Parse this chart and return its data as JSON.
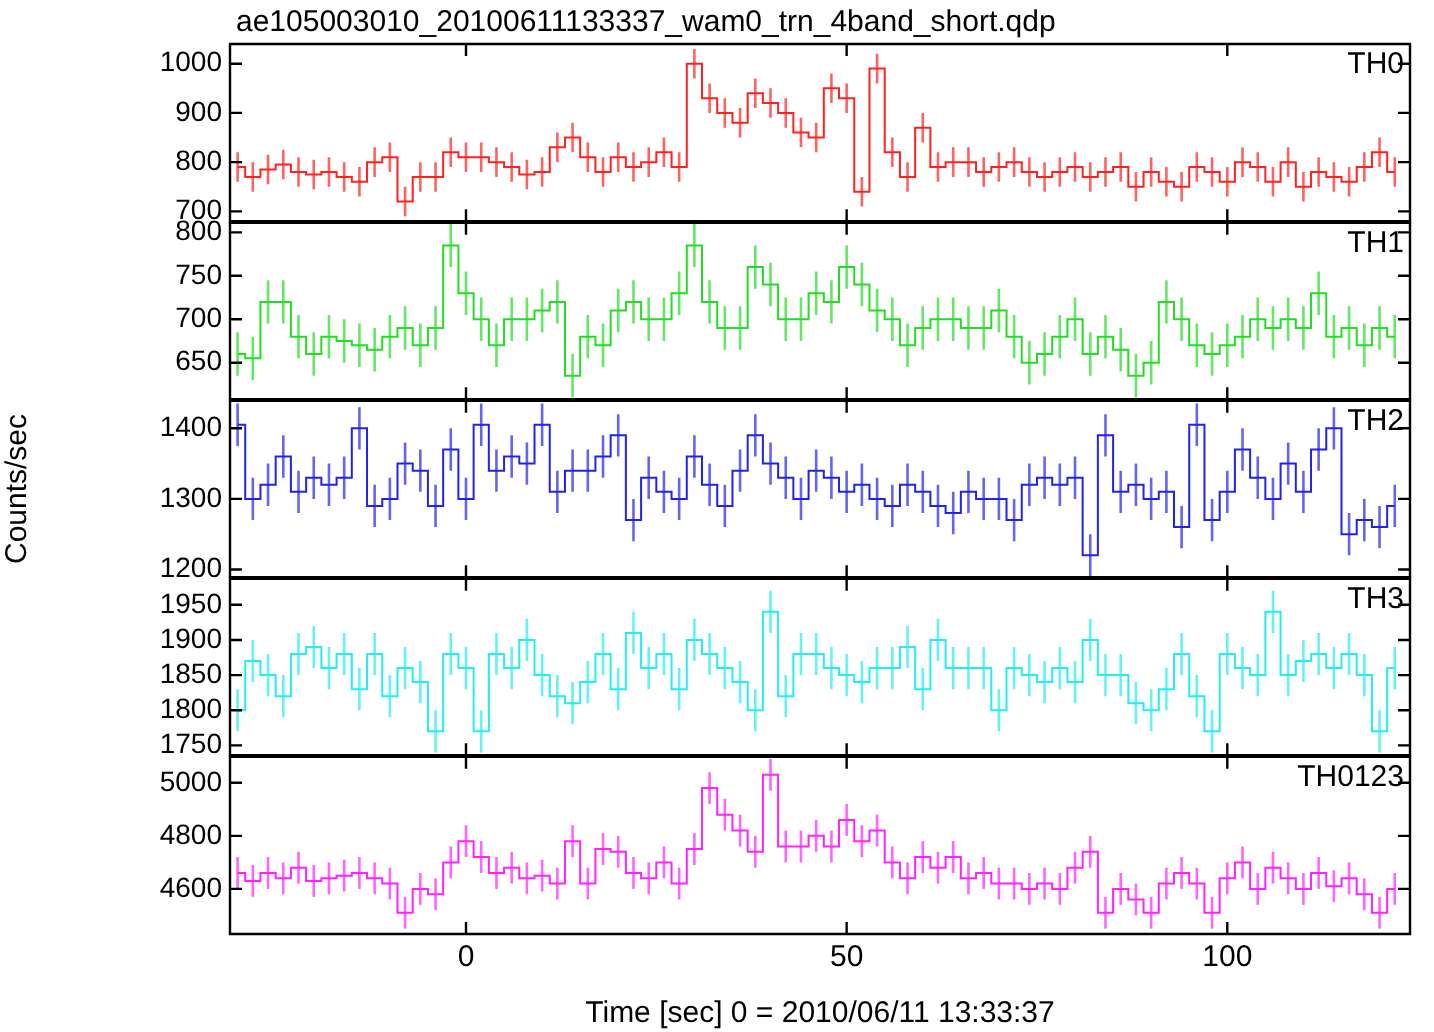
{
  "chart_data": [
    {
      "type": "step",
      "title": "ae105003010_20100611133337_wam0_trn_4band_short.qdp",
      "annotations": [
        "TH0"
      ],
      "color": "#ff2020",
      "xlim": [
        -31,
        124
      ],
      "xticks": [
        0,
        50,
        100
      ],
      "ylim": [
        680,
        1040
      ],
      "yticks": [
        700,
        800,
        900,
        1000
      ],
      "tick_labels": "y",
      "x": [
        -30,
        -28,
        -26,
        -24,
        -22,
        -20,
        -18,
        -16,
        -14,
        -12,
        -10,
        -8,
        -6,
        -4,
        -2,
        0,
        2,
        4,
        6,
        8,
        10,
        12,
        14,
        16,
        18,
        20,
        22,
        24,
        26,
        28,
        30,
        32,
        34,
        36,
        38,
        40,
        42,
        44,
        46,
        48,
        50,
        52,
        54,
        56,
        58,
        60,
        62,
        64,
        66,
        68,
        70,
        72,
        74,
        76,
        78,
        80,
        82,
        84,
        86,
        88,
        90,
        92,
        94,
        96,
        98,
        100,
        102,
        104,
        106,
        108,
        110,
        112,
        114,
        116,
        118,
        120,
        122
      ],
      "values": [
        790,
        770,
        785,
        795,
        780,
        775,
        780,
        770,
        760,
        800,
        810,
        720,
        770,
        770,
        820,
        810,
        810,
        800,
        790,
        775,
        780,
        830,
        850,
        810,
        780,
        810,
        790,
        800,
        820,
        790,
        1000,
        930,
        900,
        880,
        940,
        920,
        900,
        860,
        850,
        950,
        930,
        740,
        990,
        820,
        770,
        870,
        790,
        800,
        800,
        780,
        790,
        800,
        780,
        770,
        780,
        790,
        770,
        780,
        790,
        750,
        780,
        760,
        750,
        790,
        780,
        760,
        800,
        790,
        760,
        800,
        750,
        780,
        770,
        760,
        790,
        820,
        780
      ],
      "errors": [
        30,
        30,
        30,
        30,
        30,
        30,
        30,
        30,
        30,
        30,
        30,
        30,
        30,
        30,
        30,
        30,
        30,
        30,
        30,
        30,
        30,
        30,
        30,
        30,
        30,
        30,
        30,
        30,
        30,
        30,
        30,
        30,
        30,
        30,
        30,
        30,
        30,
        30,
        30,
        30,
        30,
        30,
        30,
        30,
        30,
        30,
        30,
        30,
        30,
        30,
        30,
        30,
        30,
        30,
        30,
        30,
        30,
        30,
        30,
        30,
        30,
        30,
        30,
        30,
        30,
        30,
        30,
        30,
        30,
        30,
        30,
        30,
        30,
        30,
        30,
        30,
        30
      ]
    },
    {
      "type": "step",
      "annotations": [
        "TH1"
      ],
      "color": "#22dd22",
      "xlim": [
        -31,
        124
      ],
      "xticks": [
        0,
        50,
        100
      ],
      "ylim": [
        608,
        811
      ],
      "yticks": [
        650,
        700,
        750,
        800
      ],
      "tick_labels": "y",
      "x": [
        -30,
        -28,
        -26,
        -24,
        -22,
        -20,
        -18,
        -16,
        -14,
        -12,
        -10,
        -8,
        -6,
        -4,
        -2,
        0,
        2,
        4,
        6,
        8,
        10,
        12,
        14,
        16,
        18,
        20,
        22,
        24,
        26,
        28,
        30,
        32,
        34,
        36,
        38,
        40,
        42,
        44,
        46,
        48,
        50,
        52,
        54,
        56,
        58,
        60,
        62,
        64,
        66,
        68,
        70,
        72,
        74,
        76,
        78,
        80,
        82,
        84,
        86,
        88,
        90,
        92,
        94,
        96,
        98,
        100,
        102,
        104,
        106,
        108,
        110,
        112,
        114,
        116,
        118,
        120,
        122
      ],
      "values": [
        660,
        655,
        720,
        720,
        680,
        660,
        680,
        675,
        670,
        665,
        680,
        690,
        670,
        690,
        785,
        730,
        700,
        670,
        700,
        700,
        710,
        720,
        635,
        680,
        670,
        710,
        720,
        700,
        700,
        730,
        785,
        720,
        690,
        690,
        760,
        740,
        700,
        700,
        730,
        720,
        760,
        740,
        710,
        700,
        670,
        690,
        700,
        700,
        690,
        690,
        710,
        680,
        650,
        660,
        680,
        700,
        660,
        680,
        665,
        635,
        650,
        720,
        700,
        670,
        660,
        670,
        680,
        700,
        690,
        700,
        690,
        730,
        680,
        690,
        670,
        690,
        680
      ],
      "errors": [
        25,
        25,
        25,
        25,
        25,
        25,
        25,
        25,
        25,
        25,
        25,
        25,
        25,
        25,
        25,
        25,
        25,
        25,
        25,
        25,
        25,
        25,
        25,
        25,
        25,
        25,
        25,
        25,
        25,
        25,
        25,
        25,
        25,
        25,
        25,
        25,
        25,
        25,
        25,
        25,
        25,
        25,
        25,
        25,
        25,
        25,
        25,
        25,
        25,
        25,
        25,
        25,
        25,
        25,
        25,
        25,
        25,
        25,
        25,
        25,
        25,
        25,
        25,
        25,
        25,
        25,
        25,
        25,
        25,
        25,
        25,
        25,
        25,
        25,
        25,
        25,
        25
      ]
    },
    {
      "type": "step",
      "annotations": [
        "TH2"
      ],
      "ylabel": "Counts/sec",
      "color": "#2222ee",
      "xlim": [
        -31,
        124
      ],
      "xticks": [
        0,
        50,
        100
      ],
      "ylim": [
        1189,
        1439
      ],
      "yticks": [
        1200,
        1300,
        1400
      ],
      "tick_labels": "y",
      "x": [
        -30,
        -28,
        -26,
        -24,
        -22,
        -20,
        -18,
        -16,
        -14,
        -12,
        -10,
        -8,
        -6,
        -4,
        -2,
        0,
        2,
        4,
        6,
        8,
        10,
        12,
        14,
        16,
        18,
        20,
        22,
        24,
        26,
        28,
        30,
        32,
        34,
        36,
        38,
        40,
        42,
        44,
        46,
        48,
        50,
        52,
        54,
        56,
        58,
        60,
        62,
        64,
        66,
        68,
        70,
        72,
        74,
        76,
        78,
        80,
        82,
        84,
        86,
        88,
        90,
        92,
        94,
        96,
        98,
        100,
        102,
        104,
        106,
        108,
        110,
        112,
        114,
        116,
        118,
        120,
        122
      ],
      "values": [
        1405,
        1300,
        1320,
        1360,
        1310,
        1330,
        1320,
        1330,
        1400,
        1290,
        1300,
        1350,
        1340,
        1290,
        1370,
        1300,
        1405,
        1340,
        1360,
        1350,
        1405,
        1310,
        1340,
        1340,
        1360,
        1390,
        1270,
        1330,
        1310,
        1300,
        1360,
        1320,
        1290,
        1340,
        1390,
        1350,
        1330,
        1300,
        1340,
        1330,
        1310,
        1320,
        1300,
        1290,
        1320,
        1310,
        1290,
        1280,
        1310,
        1300,
        1300,
        1270,
        1320,
        1330,
        1320,
        1330,
        1220,
        1390,
        1310,
        1320,
        1300,
        1310,
        1260,
        1405,
        1270,
        1310,
        1370,
        1330,
        1300,
        1350,
        1310,
        1370,
        1400,
        1250,
        1270,
        1260,
        1290
      ],
      "errors": [
        30,
        30,
        30,
        30,
        30,
        30,
        30,
        30,
        30,
        30,
        30,
        30,
        30,
        30,
        30,
        30,
        30,
        30,
        30,
        30,
        30,
        30,
        30,
        30,
        30,
        30,
        30,
        30,
        30,
        30,
        30,
        30,
        30,
        30,
        30,
        30,
        30,
        30,
        30,
        30,
        30,
        30,
        30,
        30,
        30,
        30,
        30,
        30,
        30,
        30,
        30,
        30,
        30,
        30,
        30,
        30,
        30,
        30,
        30,
        30,
        30,
        30,
        30,
        30,
        30,
        30,
        30,
        30,
        30,
        30,
        30,
        30,
        30,
        30,
        30,
        30,
        30
      ]
    },
    {
      "type": "step",
      "annotations": [
        "TH3"
      ],
      "color": "#22eeee",
      "xlim": [
        -31,
        124
      ],
      "xticks": [
        0,
        50,
        100
      ],
      "ylim": [
        1736,
        1987
      ],
      "yticks": [
        1750,
        1800,
        1850,
        1900,
        1950
      ],
      "tick_labels": "y",
      "x": [
        -30,
        -28,
        -26,
        -24,
        -22,
        -20,
        -18,
        -16,
        -14,
        -12,
        -10,
        -8,
        -6,
        -4,
        -2,
        0,
        2,
        4,
        6,
        8,
        10,
        12,
        14,
        16,
        18,
        20,
        22,
        24,
        26,
        28,
        30,
        32,
        34,
        36,
        38,
        40,
        42,
        44,
        46,
        48,
        50,
        52,
        54,
        56,
        58,
        60,
        62,
        64,
        66,
        68,
        70,
        72,
        74,
        76,
        78,
        80,
        82,
        84,
        86,
        88,
        90,
        92,
        94,
        96,
        98,
        100,
        102,
        104,
        106,
        108,
        110,
        112,
        114,
        116,
        118,
        120,
        122
      ],
      "values": [
        1800,
        1870,
        1850,
        1820,
        1880,
        1890,
        1860,
        1880,
        1830,
        1880,
        1820,
        1860,
        1840,
        1770,
        1880,
        1860,
        1770,
        1880,
        1860,
        1900,
        1850,
        1820,
        1810,
        1840,
        1880,
        1830,
        1910,
        1860,
        1880,
        1830,
        1900,
        1880,
        1860,
        1840,
        1800,
        1940,
        1820,
        1880,
        1880,
        1860,
        1850,
        1840,
        1860,
        1860,
        1890,
        1830,
        1900,
        1860,
        1860,
        1860,
        1800,
        1860,
        1850,
        1840,
        1860,
        1840,
        1900,
        1850,
        1850,
        1810,
        1800,
        1830,
        1880,
        1820,
        1770,
        1880,
        1860,
        1850,
        1940,
        1850,
        1870,
        1880,
        1860,
        1880,
        1850,
        1770,
        1860
      ],
      "errors": [
        30,
        30,
        30,
        30,
        30,
        30,
        30,
        30,
        30,
        30,
        30,
        30,
        30,
        30,
        30,
        30,
        30,
        30,
        30,
        30,
        30,
        30,
        30,
        30,
        30,
        30,
        30,
        30,
        30,
        30,
        30,
        30,
        30,
        30,
        30,
        30,
        30,
        30,
        30,
        30,
        30,
        30,
        30,
        30,
        30,
        30,
        30,
        30,
        30,
        30,
        30,
        30,
        30,
        30,
        30,
        30,
        30,
        30,
        30,
        30,
        30,
        30,
        30,
        30,
        30,
        30,
        30,
        30,
        30,
        30,
        30,
        30,
        30,
        30,
        30,
        30,
        30
      ]
    },
    {
      "type": "step",
      "annotations": [
        "TH0123"
      ],
      "xlabel": "Time [sec] 0 = 2010/06/11 13:33:37",
      "color": "#ff22ff",
      "xlim": [
        -31,
        124
      ],
      "xticks": [
        0,
        50,
        100
      ],
      "ylim": [
        4430,
        5098
      ],
      "yticks": [
        4600,
        4800,
        5000
      ],
      "x": [
        -30,
        -28,
        -26,
        -24,
        -22,
        -20,
        -18,
        -16,
        -14,
        -12,
        -10,
        -8,
        -6,
        -4,
        -2,
        0,
        2,
        4,
        6,
        8,
        10,
        12,
        14,
        16,
        18,
        20,
        22,
        24,
        26,
        28,
        30,
        32,
        34,
        36,
        38,
        40,
        42,
        44,
        46,
        48,
        50,
        52,
        54,
        56,
        58,
        60,
        62,
        64,
        66,
        68,
        70,
        72,
        74,
        76,
        78,
        80,
        82,
        84,
        86,
        88,
        90,
        92,
        94,
        96,
        98,
        100,
        102,
        104,
        106,
        108,
        110,
        112,
        114,
        116,
        118,
        120,
        122
      ],
      "values": [
        4660,
        4630,
        4660,
        4640,
        4680,
        4630,
        4640,
        4650,
        4660,
        4640,
        4620,
        4510,
        4600,
        4580,
        4700,
        4780,
        4720,
        4660,
        4680,
        4640,
        4650,
        4620,
        4780,
        4620,
        4750,
        4740,
        4660,
        4640,
        4700,
        4620,
        4750,
        4980,
        4880,
        4820,
        4740,
        5030,
        4760,
        4760,
        4800,
        4760,
        4860,
        4780,
        4820,
        4700,
        4640,
        4720,
        4680,
        4720,
        4640,
        4660,
        4620,
        4620,
        4600,
        4620,
        4600,
        4680,
        4740,
        4510,
        4600,
        4560,
        4510,
        4620,
        4660,
        4620,
        4510,
        4640,
        4700,
        4600,
        4680,
        4640,
        4600,
        4660,
        4610,
        4640,
        4580,
        4510,
        4600
      ],
      "errors": [
        60,
        60,
        60,
        60,
        60,
        60,
        60,
        60,
        60,
        60,
        60,
        60,
        60,
        60,
        60,
        60,
        60,
        60,
        60,
        60,
        60,
        60,
        60,
        60,
        60,
        60,
        60,
        60,
        60,
        60,
        60,
        60,
        60,
        60,
        60,
        60,
        60,
        60,
        60,
        60,
        60,
        60,
        60,
        60,
        60,
        60,
        60,
        60,
        60,
        60,
        60,
        60,
        60,
        60,
        60,
        60,
        60,
        60,
        60,
        60,
        60,
        60,
        60,
        60,
        60,
        60,
        60,
        60,
        60,
        60,
        60,
        60,
        60,
        60,
        60,
        60,
        60
      ]
    }
  ]
}
